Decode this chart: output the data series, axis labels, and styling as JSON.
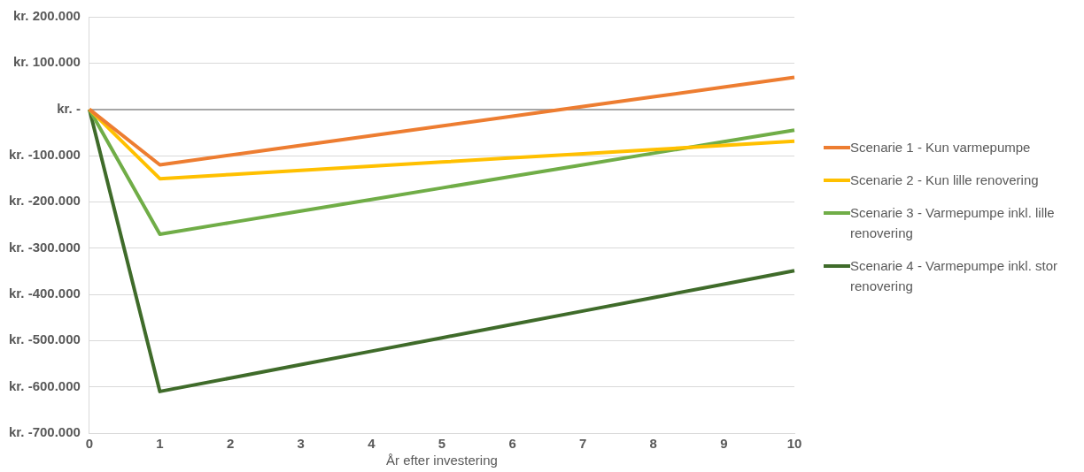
{
  "chart_data": {
    "type": "line",
    "xlabel": "År efter investering",
    "categories": [
      "0",
      "1",
      "2",
      "3",
      "4",
      "5",
      "6",
      "7",
      "8",
      "9",
      "10"
    ],
    "series": [
      {
        "name": "Scenarie 1 - Kun varmepumpe",
        "color": "#ed7d31",
        "values": [
          0,
          -120000,
          -99000,
          -78000,
          -57000,
          -36000,
          -15000,
          6000,
          27000,
          48000,
          69000
        ]
      },
      {
        "name": "Scenarie 2 - Kun lille renovering",
        "color": "#ffc000",
        "values": [
          0,
          -150000,
          -141000,
          -132000,
          -123000,
          -114000,
          -105000,
          -96000,
          -87000,
          -78000,
          -69000
        ]
      },
      {
        "name": "Scenarie 3 - Varmepumpe inkl. lille renovering",
        "color": "#70ad47",
        "values": [
          0,
          -270000,
          -245000,
          -220000,
          -195000,
          -170000,
          -145000,
          -120000,
          -95000,
          -70000,
          -45000
        ]
      },
      {
        "name": "Scenarie 4 - Varmepumpe inkl. stor renovering",
        "color": "#3f6b2a",
        "values": [
          0,
          -610000,
          -581000,
          -552000,
          -523000,
          -494000,
          -465000,
          -436000,
          -407000,
          -378000,
          -349000
        ]
      }
    ],
    "ylim": [
      -700000,
      200000
    ],
    "yticks": [
      {
        "value": -700000,
        "label": "kr. -700.000"
      },
      {
        "value": -600000,
        "label": "kr. -600.000"
      },
      {
        "value": -500000,
        "label": "kr. -500.000"
      },
      {
        "value": -400000,
        "label": "kr. -400.000"
      },
      {
        "value": -300000,
        "label": "kr. -300.000"
      },
      {
        "value": -200000,
        "label": "kr. -200.000"
      },
      {
        "value": -100000,
        "label": "kr. -100.000"
      },
      {
        "value": 0,
        "label": "kr. -"
      },
      {
        "value": 100000,
        "label": "kr. 100.000"
      },
      {
        "value": 200000,
        "label": "kr. 200.000"
      }
    ],
    "grid": "y",
    "legend": "right",
    "marker": "none",
    "line_style": "solid"
  }
}
